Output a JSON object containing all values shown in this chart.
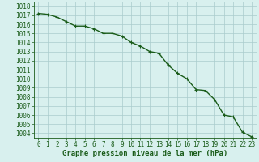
{
  "x": [
    0,
    1,
    2,
    3,
    4,
    5,
    6,
    7,
    8,
    9,
    10,
    11,
    12,
    13,
    14,
    15,
    16,
    17,
    18,
    19,
    20,
    21,
    22,
    23
  ],
  "y": [
    1017.2,
    1017.1,
    1016.8,
    1016.3,
    1015.8,
    1015.8,
    1015.5,
    1015.0,
    1015.0,
    1014.7,
    1014.0,
    1013.6,
    1013.0,
    1012.8,
    1011.5,
    1010.6,
    1010.0,
    1008.8,
    1008.7,
    1007.7,
    1006.0,
    1005.8,
    1004.1,
    1003.6
  ],
  "line_color": "#1a5c1a",
  "marker": "+",
  "marker_size": 3,
  "line_width": 1.0,
  "bg_color": "#d8f0ee",
  "grid_color": "#aacccc",
  "ylabel_ticks": [
    1004,
    1005,
    1006,
    1007,
    1008,
    1009,
    1010,
    1011,
    1012,
    1013,
    1014,
    1015,
    1016,
    1017,
    1018
  ],
  "ylim": [
    1003.5,
    1018.5
  ],
  "xlim": [
    -0.5,
    23.5
  ],
  "xlabel": "Graphe pression niveau de la mer (hPa)",
  "xlabel_color": "#1a5c1a",
  "tick_color": "#1a5c1a",
  "tick_label_color": "#1a5c1a",
  "axis_color": "#1a5c1a",
  "font_size_ytick": 5.5,
  "font_size_xtick": 5.5,
  "font_size_xlabel": 6.5
}
